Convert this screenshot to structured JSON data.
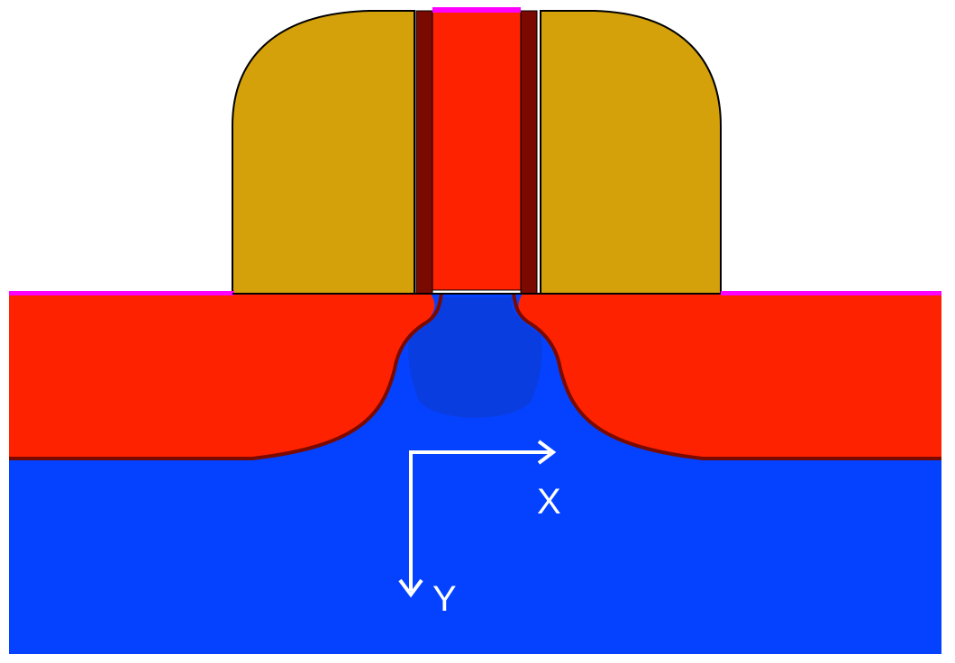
{
  "axes": {
    "x_label": "X",
    "y_label": "Y"
  },
  "colors": {
    "background": "#ffffff",
    "spacer": "#d4a10a",
    "gate": "#ff2200",
    "gate_liner": "#7a0a00",
    "gate_top_contact": "#ff00ff",
    "surface_contact": "#ff00ff",
    "substrate": "#0442ff",
    "channel_core": "#0a3de0",
    "junction_line": "#7a0a00",
    "doping_levels": [
      "#ff2200",
      "#ff3c00",
      "#ff5a00",
      "#ff7800",
      "#ff9600",
      "#ffb400",
      "#ffd200"
    ],
    "axis_arrows": "#ffffff"
  }
}
